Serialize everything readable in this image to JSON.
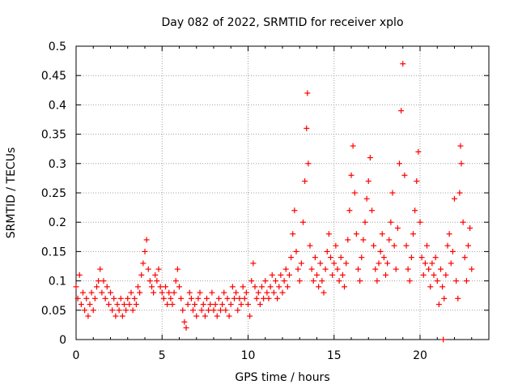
{
  "chart_data": {
    "type": "scatter",
    "title": "Day 082 of 2022, SRMTID for receiver xplo",
    "xlabel": "GPS time / hours",
    "ylabel": "SRMTID / TECUs",
    "xlim": [
      0,
      24
    ],
    "ylim": [
      0,
      0.5
    ],
    "grid": true,
    "marker": "+",
    "color": "#ff0000",
    "x_ticks": [
      0,
      5,
      10,
      15,
      20
    ],
    "x_tick_labels": [
      "0",
      "5",
      "10",
      "15",
      "20"
    ],
    "y_ticks": [
      0,
      0.05,
      0.1,
      0.15,
      0.2,
      0.25,
      0.3,
      0.35,
      0.4,
      0.45,
      0.5
    ],
    "y_tick_labels": [
      "0",
      "0.05",
      "0.1",
      "0.15",
      "0.2",
      "0.25",
      "0.3",
      "0.35",
      "0.4",
      "0.45",
      "0.5"
    ],
    "series": [
      {
        "name": "SRMTID",
        "points": [
          [
            0.0,
            0.09
          ],
          [
            0.1,
            0.07
          ],
          [
            0.2,
            0.11
          ],
          [
            0.3,
            0.06
          ],
          [
            0.4,
            0.08
          ],
          [
            0.5,
            0.05
          ],
          [
            0.6,
            0.07
          ],
          [
            0.7,
            0.04
          ],
          [
            0.8,
            0.06
          ],
          [
            0.9,
            0.08
          ],
          [
            1.0,
            0.05
          ],
          [
            1.1,
            0.07
          ],
          [
            1.2,
            0.09
          ],
          [
            1.3,
            0.1
          ],
          [
            1.4,
            0.12
          ],
          [
            1.5,
            0.08
          ],
          [
            1.6,
            0.1
          ],
          [
            1.7,
            0.07
          ],
          [
            1.8,
            0.09
          ],
          [
            1.9,
            0.06
          ],
          [
            2.0,
            0.08
          ],
          [
            2.1,
            0.05
          ],
          [
            2.2,
            0.07
          ],
          [
            2.3,
            0.04
          ],
          [
            2.4,
            0.06
          ],
          [
            2.5,
            0.05
          ],
          [
            2.6,
            0.07
          ],
          [
            2.7,
            0.04
          ],
          [
            2.8,
            0.06
          ],
          [
            2.9,
            0.05
          ],
          [
            3.0,
            0.07
          ],
          [
            3.1,
            0.06
          ],
          [
            3.2,
            0.08
          ],
          [
            3.3,
            0.05
          ],
          [
            3.4,
            0.07
          ],
          [
            3.5,
            0.06
          ],
          [
            3.6,
            0.09
          ],
          [
            3.7,
            0.08
          ],
          [
            3.8,
            0.11
          ],
          [
            3.9,
            0.13
          ],
          [
            4.0,
            0.15
          ],
          [
            4.1,
            0.17
          ],
          [
            4.2,
            0.12
          ],
          [
            4.3,
            0.1
          ],
          [
            4.4,
            0.09
          ],
          [
            4.5,
            0.08
          ],
          [
            4.6,
            0.11
          ],
          [
            4.7,
            0.1
          ],
          [
            4.8,
            0.12
          ],
          [
            4.9,
            0.09
          ],
          [
            5.0,
            0.08
          ],
          [
            5.1,
            0.07
          ],
          [
            5.2,
            0.09
          ],
          [
            5.3,
            0.06
          ],
          [
            5.4,
            0.08
          ],
          [
            5.5,
            0.07
          ],
          [
            5.6,
            0.06
          ],
          [
            5.7,
            0.08
          ],
          [
            5.8,
            0.1
          ],
          [
            5.9,
            0.12
          ],
          [
            6.0,
            0.09
          ],
          [
            6.1,
            0.07
          ],
          [
            6.2,
            0.05
          ],
          [
            6.3,
            0.03
          ],
          [
            6.4,
            0.02
          ],
          [
            6.5,
            0.06
          ],
          [
            6.6,
            0.08
          ],
          [
            6.7,
            0.07
          ],
          [
            6.8,
            0.05
          ],
          [
            6.9,
            0.06
          ],
          [
            7.0,
            0.04
          ],
          [
            7.1,
            0.07
          ],
          [
            7.2,
            0.08
          ],
          [
            7.3,
            0.05
          ],
          [
            7.4,
            0.06
          ],
          [
            7.5,
            0.04
          ],
          [
            7.6,
            0.07
          ],
          [
            7.7,
            0.05
          ],
          [
            7.8,
            0.06
          ],
          [
            7.9,
            0.08
          ],
          [
            8.0,
            0.05
          ],
          [
            8.1,
            0.06
          ],
          [
            8.2,
            0.04
          ],
          [
            8.3,
            0.07
          ],
          [
            8.4,
            0.05
          ],
          [
            8.5,
            0.06
          ],
          [
            8.6,
            0.08
          ],
          [
            8.7,
            0.05
          ],
          [
            8.8,
            0.07
          ],
          [
            8.9,
            0.04
          ],
          [
            9.0,
            0.06
          ],
          [
            9.1,
            0.09
          ],
          [
            9.2,
            0.07
          ],
          [
            9.3,
            0.08
          ],
          [
            9.4,
            0.05
          ],
          [
            9.5,
            0.07
          ],
          [
            9.6,
            0.06
          ],
          [
            9.7,
            0.09
          ],
          [
            9.8,
            0.07
          ],
          [
            9.9,
            0.08
          ],
          [
            10.0,
            0.06
          ],
          [
            10.1,
            0.04
          ],
          [
            10.2,
            0.1
          ],
          [
            10.3,
            0.13
          ],
          [
            10.4,
            0.09
          ],
          [
            10.5,
            0.07
          ],
          [
            10.6,
            0.08
          ],
          [
            10.7,
            0.06
          ],
          [
            10.8,
            0.09
          ],
          [
            10.9,
            0.07
          ],
          [
            11.0,
            0.1
          ],
          [
            11.1,
            0.08
          ],
          [
            11.2,
            0.07
          ],
          [
            11.3,
            0.09
          ],
          [
            11.4,
            0.11
          ],
          [
            11.5,
            0.08
          ],
          [
            11.6,
            0.1
          ],
          [
            11.7,
            0.07
          ],
          [
            11.8,
            0.09
          ],
          [
            11.9,
            0.11
          ],
          [
            12.0,
            0.08
          ],
          [
            12.1,
            0.1
          ],
          [
            12.2,
            0.12
          ],
          [
            12.3,
            0.09
          ],
          [
            12.4,
            0.11
          ],
          [
            12.5,
            0.14
          ],
          [
            12.6,
            0.18
          ],
          [
            12.7,
            0.22
          ],
          [
            12.8,
            0.15
          ],
          [
            12.9,
            0.12
          ],
          [
            13.0,
            0.1
          ],
          [
            13.1,
            0.13
          ],
          [
            13.2,
            0.2
          ],
          [
            13.3,
            0.27
          ],
          [
            13.4,
            0.36
          ],
          [
            13.45,
            0.42
          ],
          [
            13.5,
            0.3
          ],
          [
            13.6,
            0.16
          ],
          [
            13.7,
            0.12
          ],
          [
            13.8,
            0.1
          ],
          [
            13.9,
            0.14
          ],
          [
            14.0,
            0.11
          ],
          [
            14.1,
            0.09
          ],
          [
            14.2,
            0.13
          ],
          [
            14.3,
            0.1
          ],
          [
            14.4,
            0.08
          ],
          [
            14.5,
            0.12
          ],
          [
            14.6,
            0.15
          ],
          [
            14.7,
            0.18
          ],
          [
            14.8,
            0.14
          ],
          [
            14.9,
            0.11
          ],
          [
            15.0,
            0.13
          ],
          [
            15.1,
            0.16
          ],
          [
            15.2,
            0.12
          ],
          [
            15.3,
            0.1
          ],
          [
            15.4,
            0.14
          ],
          [
            15.5,
            0.11
          ],
          [
            15.6,
            0.09
          ],
          [
            15.7,
            0.13
          ],
          [
            15.8,
            0.17
          ],
          [
            15.9,
            0.22
          ],
          [
            16.0,
            0.28
          ],
          [
            16.1,
            0.33
          ],
          [
            16.2,
            0.25
          ],
          [
            16.3,
            0.18
          ],
          [
            16.4,
            0.12
          ],
          [
            16.5,
            0.1
          ],
          [
            16.6,
            0.14
          ],
          [
            16.7,
            0.17
          ],
          [
            16.8,
            0.2
          ],
          [
            16.9,
            0.24
          ],
          [
            17.0,
            0.27
          ],
          [
            17.1,
            0.31
          ],
          [
            17.2,
            0.22
          ],
          [
            17.3,
            0.16
          ],
          [
            17.4,
            0.12
          ],
          [
            17.5,
            0.1
          ],
          [
            17.6,
            0.13
          ],
          [
            17.7,
            0.15
          ],
          [
            17.8,
            0.18
          ],
          [
            17.9,
            0.14
          ],
          [
            18.0,
            0.11
          ],
          [
            18.1,
            0.13
          ],
          [
            18.2,
            0.17
          ],
          [
            18.3,
            0.2
          ],
          [
            18.4,
            0.25
          ],
          [
            18.5,
            0.16
          ],
          [
            18.6,
            0.12
          ],
          [
            18.7,
            0.19
          ],
          [
            18.8,
            0.3
          ],
          [
            18.9,
            0.39
          ],
          [
            19.0,
            0.47
          ],
          [
            19.1,
            0.28
          ],
          [
            19.2,
            0.16
          ],
          [
            19.3,
            0.12
          ],
          [
            19.4,
            0.1
          ],
          [
            19.5,
            0.14
          ],
          [
            19.6,
            0.18
          ],
          [
            19.7,
            0.22
          ],
          [
            19.8,
            0.27
          ],
          [
            19.9,
            0.32
          ],
          [
            20.0,
            0.2
          ],
          [
            20.1,
            0.14
          ],
          [
            20.2,
            0.11
          ],
          [
            20.3,
            0.13
          ],
          [
            20.4,
            0.16
          ],
          [
            20.5,
            0.12
          ],
          [
            20.6,
            0.09
          ],
          [
            20.7,
            0.13
          ],
          [
            20.8,
            0.11
          ],
          [
            20.9,
            0.14
          ],
          [
            21.0,
            0.1
          ],
          [
            21.1,
            0.06
          ],
          [
            21.2,
            0.12
          ],
          [
            21.3,
            0.09
          ],
          [
            21.35,
            0.0
          ],
          [
            21.4,
            0.07
          ],
          [
            21.5,
            0.11
          ],
          [
            21.6,
            0.16
          ],
          [
            21.7,
            0.18
          ],
          [
            21.8,
            0.13
          ],
          [
            21.9,
            0.15
          ],
          [
            22.0,
            0.24
          ],
          [
            22.1,
            0.1
          ],
          [
            22.2,
            0.07
          ],
          [
            22.3,
            0.25
          ],
          [
            22.35,
            0.33
          ],
          [
            22.4,
            0.3
          ],
          [
            22.5,
            0.2
          ],
          [
            22.6,
            0.14
          ],
          [
            22.7,
            0.1
          ],
          [
            22.8,
            0.16
          ],
          [
            22.9,
            0.19
          ],
          [
            23.0,
            0.12
          ]
        ]
      }
    ]
  }
}
